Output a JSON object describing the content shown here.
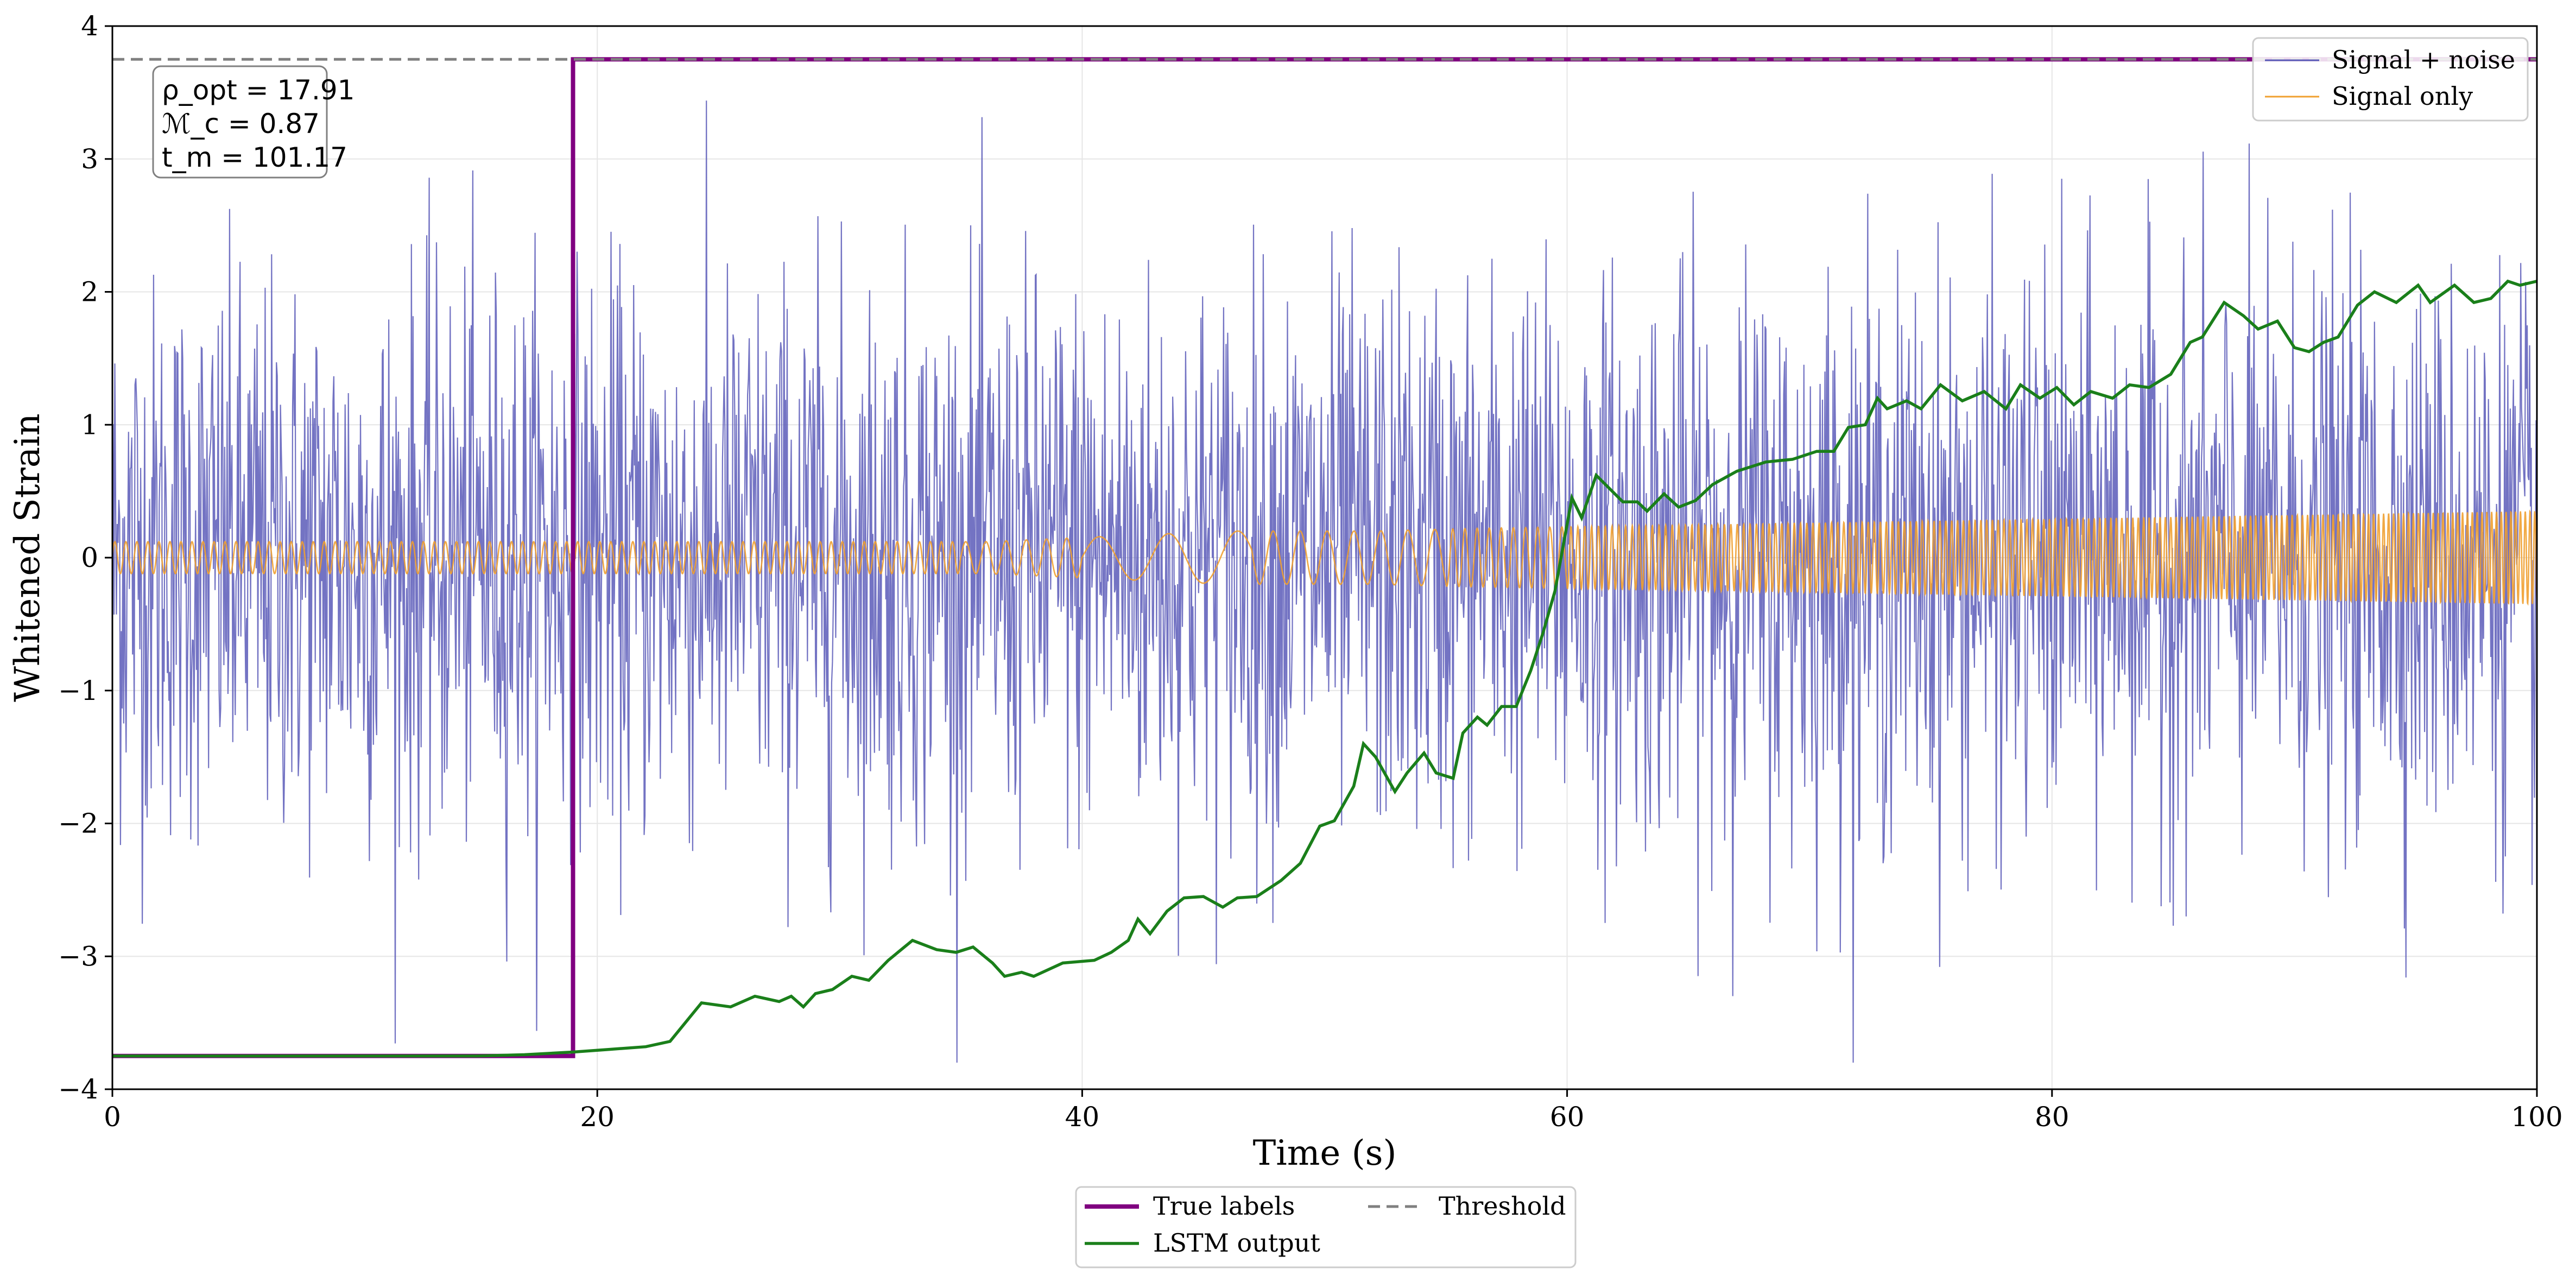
{
  "chart_data": {
    "type": "line",
    "xlabel": "Time (s)",
    "ylabel": "Whitened Strain",
    "xlim": [
      0,
      100
    ],
    "ylim": [
      -4,
      4
    ],
    "xticks": [
      0,
      20,
      40,
      60,
      80,
      100
    ],
    "yticks": [
      -4,
      -3,
      -2,
      -1,
      0,
      1,
      2,
      3,
      4
    ],
    "grid": true,
    "annotation": {
      "lines": [
        "ρ_opt = 17.91",
        "ℳ_c = 0.87",
        "t_m = 101.17"
      ],
      "rho_opt": 17.91,
      "M_c": 0.87,
      "t_m": 101.17
    },
    "legend_upper": {
      "placement": "top-right",
      "entries": [
        "Signal + noise",
        "Signal only"
      ]
    },
    "legend_lower": {
      "placement": "below-center",
      "entries": [
        "True labels",
        "Threshold",
        "LSTM output"
      ]
    },
    "colors": {
      "signal_noise": "#5a5ab8",
      "signal_only": "#f0a030",
      "true_labels": "#800080",
      "lstm": "#1a7f1a",
      "threshold": "#808080"
    },
    "series": [
      {
        "name": "Signal + noise",
        "style": "noise-like fluctuation",
        "x_range": [
          0,
          100
        ],
        "envelope": [
          -3.8,
          3.7
        ]
      },
      {
        "name": "Signal only",
        "style": "chirp oscillation",
        "x_range": [
          0,
          100
        ],
        "amplitude_start": 0.12,
        "amplitude_end": 0.35,
        "chirp_points": [
          [
            0,
            0.12
          ],
          [
            36,
            0.12
          ],
          [
            46,
            0.2
          ],
          [
            52,
            0.2
          ],
          [
            56,
            0.22
          ],
          [
            100,
            0.35
          ]
        ]
      },
      {
        "name": "True labels",
        "x": [
          0,
          19,
          19,
          100
        ],
        "y": [
          -3.75,
          -3.75,
          3.75,
          3.75
        ]
      },
      {
        "name": "Threshold",
        "x": [
          0,
          100
        ],
        "y": [
          3.75,
          3.75
        ]
      },
      {
        "name": "LSTM output",
        "x": [
          0,
          15,
          17,
          19,
          20.5,
          22,
          23,
          24.3,
          25.5,
          26.5,
          27.5,
          28,
          28.5,
          29,
          29.7,
          30.5,
          31.2,
          32,
          33,
          34,
          34.8,
          35.5,
          36.3,
          36.8,
          37.5,
          38,
          39.2,
          40.5,
          41.2,
          41.9,
          42.3,
          42.8,
          43.5,
          44.2,
          45,
          45.8,
          46.4,
          47.2,
          48.2,
          49,
          49.8,
          50.4,
          51.2,
          51.6,
          52.1,
          52.9,
          53.4,
          54.1,
          54.6,
          55.3,
          55.7,
          56.3,
          56.7,
          57.3,
          57.9,
          58.5,
          59,
          59.5,
          60.2,
          60.6,
          61.2,
          62.3,
          62.9,
          63.3,
          64,
          64.6,
          65.3,
          66,
          67,
          68.2,
          69.3,
          70.3,
          71,
          71.6,
          72.3,
          72.8,
          73.2,
          74,
          74.6,
          75.4,
          76.3,
          77.2,
          78.1,
          78.7,
          79.5,
          80.2,
          80.9,
          81.6,
          82.5,
          83.2,
          84,
          84.9,
          85.7,
          86.2,
          87.1,
          87.9,
          88.5,
          89.3,
          90,
          90.6,
          91.2,
          91.8,
          92.6,
          93.3,
          94.2,
          95.1,
          95.6,
          96.6,
          97.4,
          98.1,
          98.8,
          99.3,
          100
        ],
        "y": [
          -3.75,
          -3.75,
          -3.74,
          -3.72,
          -3.7,
          -3.68,
          -3.64,
          -3.35,
          -3.38,
          -3.3,
          -3.34,
          -3.3,
          -3.38,
          -3.28,
          -3.25,
          -3.15,
          -3.18,
          -3.03,
          -2.88,
          -2.95,
          -2.97,
          -2.93,
          -3.05,
          -3.15,
          -3.12,
          -3.15,
          -3.05,
          -3.03,
          -2.97,
          -2.88,
          -2.72,
          -2.83,
          -2.66,
          -2.56,
          -2.55,
          -2.63,
          -2.56,
          -2.55,
          -2.43,
          -2.3,
          -2.02,
          -1.98,
          -1.72,
          -1.4,
          -1.5,
          -1.76,
          -1.62,
          -1.47,
          -1.62,
          -1.66,
          -1.32,
          -1.2,
          -1.26,
          -1.12,
          -1.12,
          -0.85,
          -0.57,
          -0.25,
          0.45,
          0.3,
          0.62,
          0.42,
          0.42,
          0.35,
          0.48,
          0.38,
          0.43,
          0.55,
          0.65,
          0.72,
          0.74,
          0.8,
          0.8,
          0.98,
          1.0,
          1.2,
          1.12,
          1.18,
          1.12,
          1.3,
          1.18,
          1.25,
          1.12,
          1.3,
          1.2,
          1.28,
          1.15,
          1.25,
          1.2,
          1.3,
          1.28,
          1.38,
          1.62,
          1.66,
          1.92,
          1.82,
          1.72,
          1.78,
          1.58,
          1.55,
          1.62,
          1.66,
          1.9,
          2.0,
          1.92,
          2.05,
          1.92,
          2.05,
          1.92,
          1.95,
          2.08,
          2.05,
          2.08
        ]
      }
    ]
  }
}
